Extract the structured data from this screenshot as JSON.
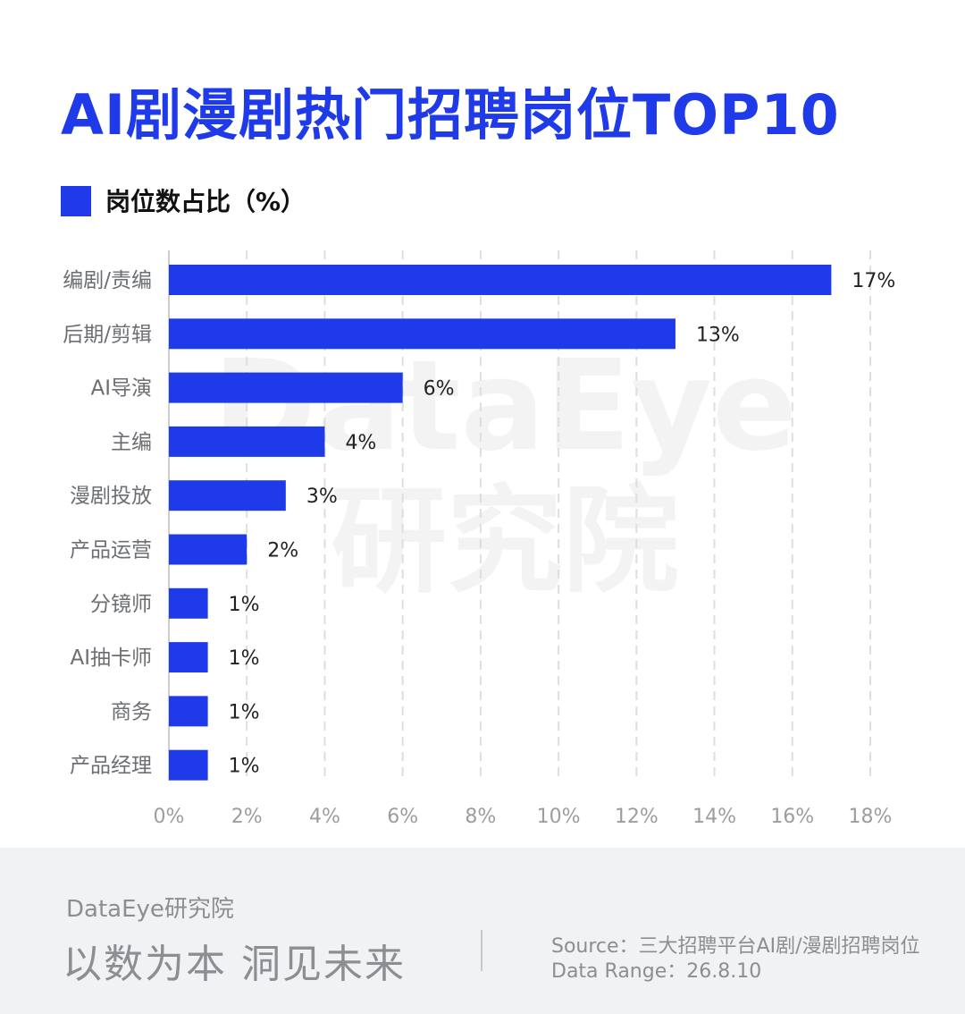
{
  "header": {
    "title": "AI剧漫剧热门招聘岗位TOP10"
  },
  "legend": {
    "label": "岗位数占比（%）",
    "color": "#1f3ae8"
  },
  "watermark": {
    "line1": "DataEye",
    "line2": "研究院"
  },
  "chart_data": {
    "type": "bar",
    "orientation": "horizontal",
    "categories": [
      "编剧/责编",
      "后期/剪辑",
      "AI导演",
      "主编",
      "漫剧投放",
      "产品运营",
      "分镜师",
      "AI抽卡师",
      "商务",
      "产品经理"
    ],
    "series": [
      {
        "name": "岗位数占比（%）",
        "values": [
          17,
          13,
          6,
          4,
          3,
          2,
          1,
          1,
          1,
          1
        ]
      }
    ],
    "data_labels": [
      "17%",
      "13%",
      "6%",
      "4%",
      "3%",
      "2%",
      "1%",
      "1%",
      "1%",
      "1%"
    ],
    "x_ticks": [
      "0%",
      "2%",
      "4%",
      "6%",
      "8%",
      "10%",
      "12%",
      "14%",
      "16%",
      "18%"
    ],
    "xlim": [
      0,
      18
    ],
    "grid": "vertical-dashed",
    "legend_position": "top-left",
    "bar_color": "#1f3ae8"
  },
  "footer": {
    "brand": "DataEye研究院",
    "slogan": "以数为本 洞见未来",
    "source": "Source：三大招聘平台AI剧/漫剧招聘岗位",
    "range": "Data Range：26.8.10"
  }
}
